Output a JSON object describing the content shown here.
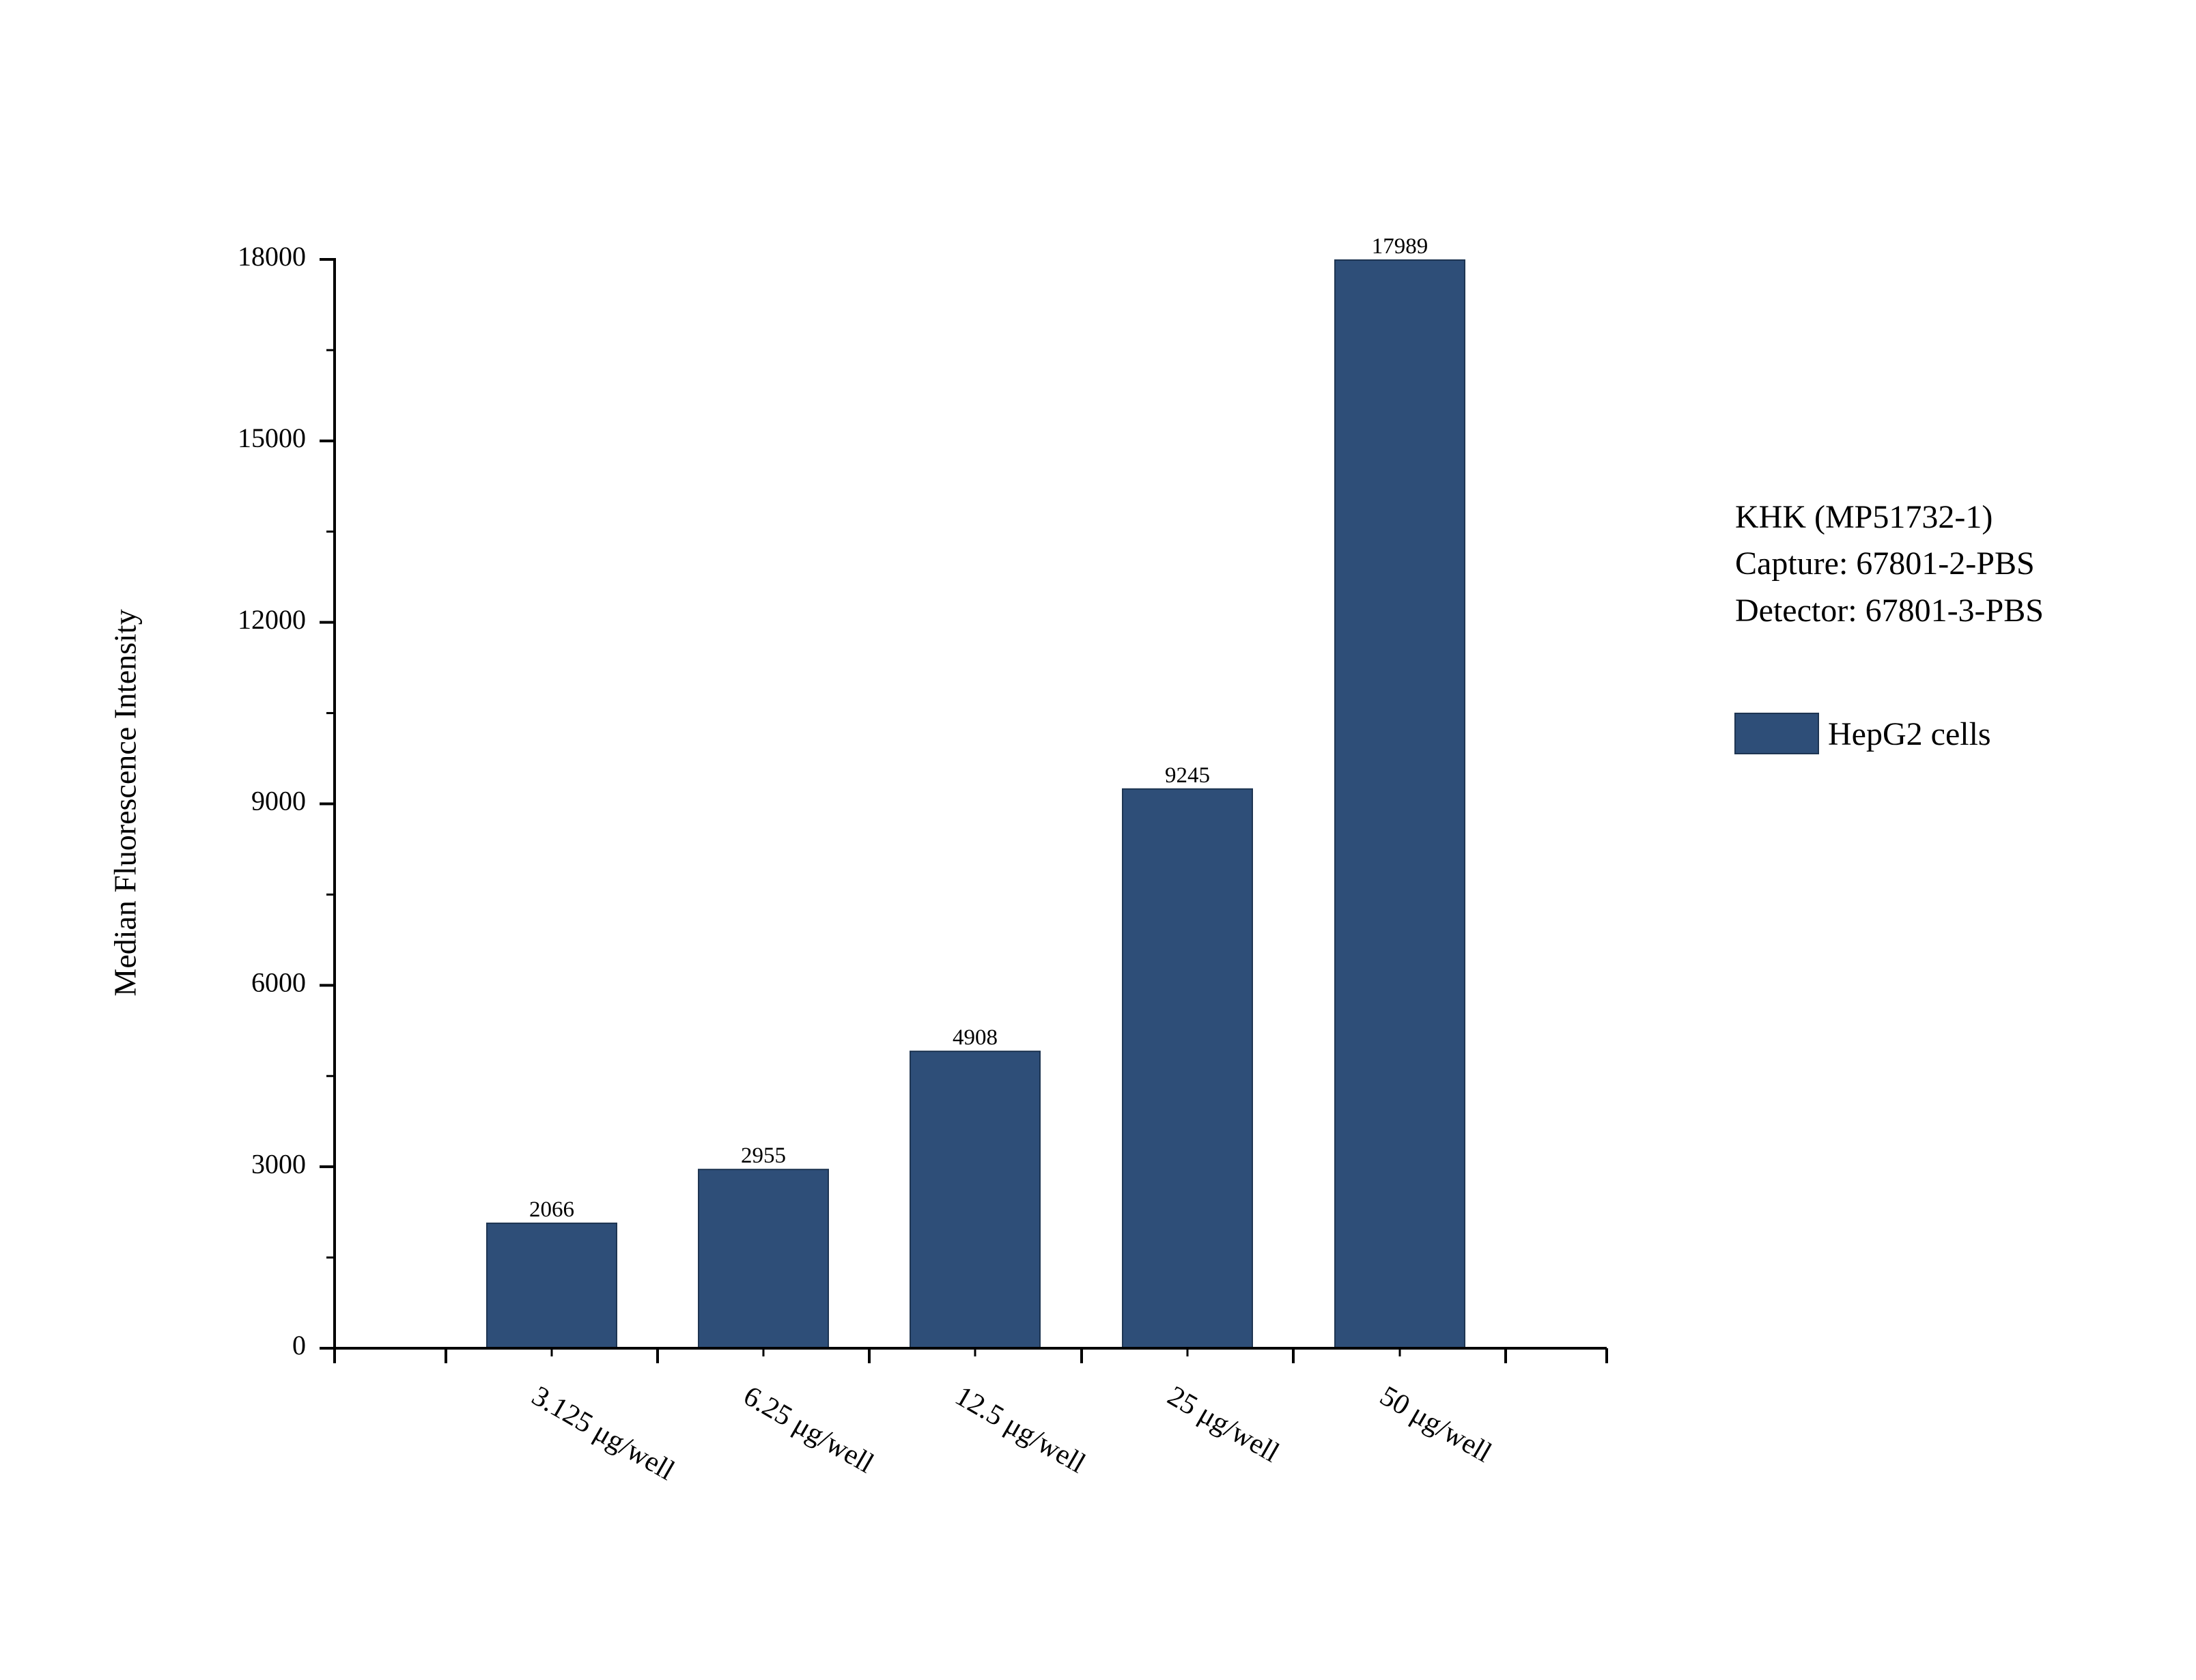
{
  "chart_data": {
    "type": "bar",
    "categories": [
      "3.125 μg/well",
      "6.25 μg/well",
      "12.5 μg/well",
      "25 μg/well",
      "50 μg/well"
    ],
    "series": [
      {
        "name": "HepG2 cells",
        "values": [
          2066,
          2955,
          4908,
          9245,
          17989
        ],
        "color": "#2e4e78"
      }
    ],
    "data_labels": [
      "2066",
      "2955",
      "4908",
      "9245",
      "17989"
    ],
    "title": "",
    "xlabel": "",
    "ylabel": "Median Fluorescence Intensity",
    "ylim": [
      0,
      18000
    ],
    "yticks": [
      0,
      3000,
      6000,
      9000,
      12000,
      15000,
      18000
    ],
    "ytick_labels": [
      "0",
      "3000",
      "6000",
      "9000",
      "12000",
      "15000",
      "18000"
    ],
    "grid": false,
    "legend": {
      "position": "right",
      "entries": [
        "HepG2 cells"
      ]
    },
    "annotations": [
      "KHK (MP51732-1)",
      "Capture: 67801-2-PBS",
      "Detector: 67801-3-PBS"
    ],
    "colors": {
      "bar": "#2e4e78",
      "axis": "#000000",
      "background": "#ffffff"
    }
  }
}
